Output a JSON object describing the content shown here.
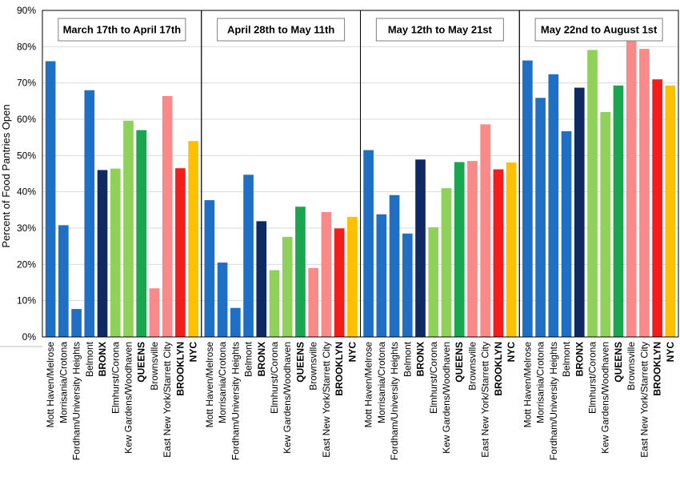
{
  "chart_data": {
    "type": "bar",
    "title": "",
    "xlabel": "",
    "ylabel": "Percent of Food Pantries  Open",
    "ylim": [
      0,
      90
    ],
    "yticks": [
      "0%",
      "10%",
      "20%",
      "30%",
      "40%",
      "50%",
      "60%",
      "70%",
      "80%",
      "90%"
    ],
    "grid": true,
    "categories": [
      "Mott Haven/Melrose",
      "Morrisania/Crotona",
      "Fordham/University Heights",
      "Belmont",
      "BRONX",
      "Elmhurst/Corona",
      "Kew Gardens/Woodhaven",
      "QUEENS",
      "Brownsville",
      "East New York/Starrett City",
      "BROOKLYN",
      "NYC"
    ],
    "bold_categories": [
      "BRONX",
      "QUEENS",
      "BROOKLYN",
      "NYC"
    ],
    "colors": [
      "#1f6fc5",
      "#1f6fc5",
      "#1f6fc5",
      "#1f6fc5",
      "#0f2a63",
      "#8fd15a",
      "#8fd15a",
      "#1aa551",
      "#fa8a8a",
      "#fa8a8a",
      "#f51c1c",
      "#ffc000"
    ],
    "panels": [
      {
        "title": "March 17th to April 17th",
        "values": [
          76,
          30.8,
          7.7,
          68,
          46,
          46.4,
          59.6,
          57,
          13.4,
          66.4,
          46.5,
          54
        ]
      },
      {
        "title": "April 28th to May 11th",
        "values": [
          37.7,
          20.5,
          8,
          44.7,
          31.9,
          18.4,
          27.6,
          35.9,
          19,
          34.4,
          29.9,
          33.1
        ]
      },
      {
        "title": "May 12th to May 21st",
        "values": [
          51.5,
          33.8,
          39.1,
          28.5,
          48.9,
          30.2,
          41,
          48.2,
          48.5,
          58.6,
          46.2,
          48.1
        ]
      },
      {
        "title": "May 22nd to August 1st",
        "values": [
          76.2,
          65.9,
          72.4,
          56.7,
          68.7,
          79.1,
          62,
          69.3,
          82,
          79.4,
          71,
          69.3
        ]
      }
    ]
  }
}
